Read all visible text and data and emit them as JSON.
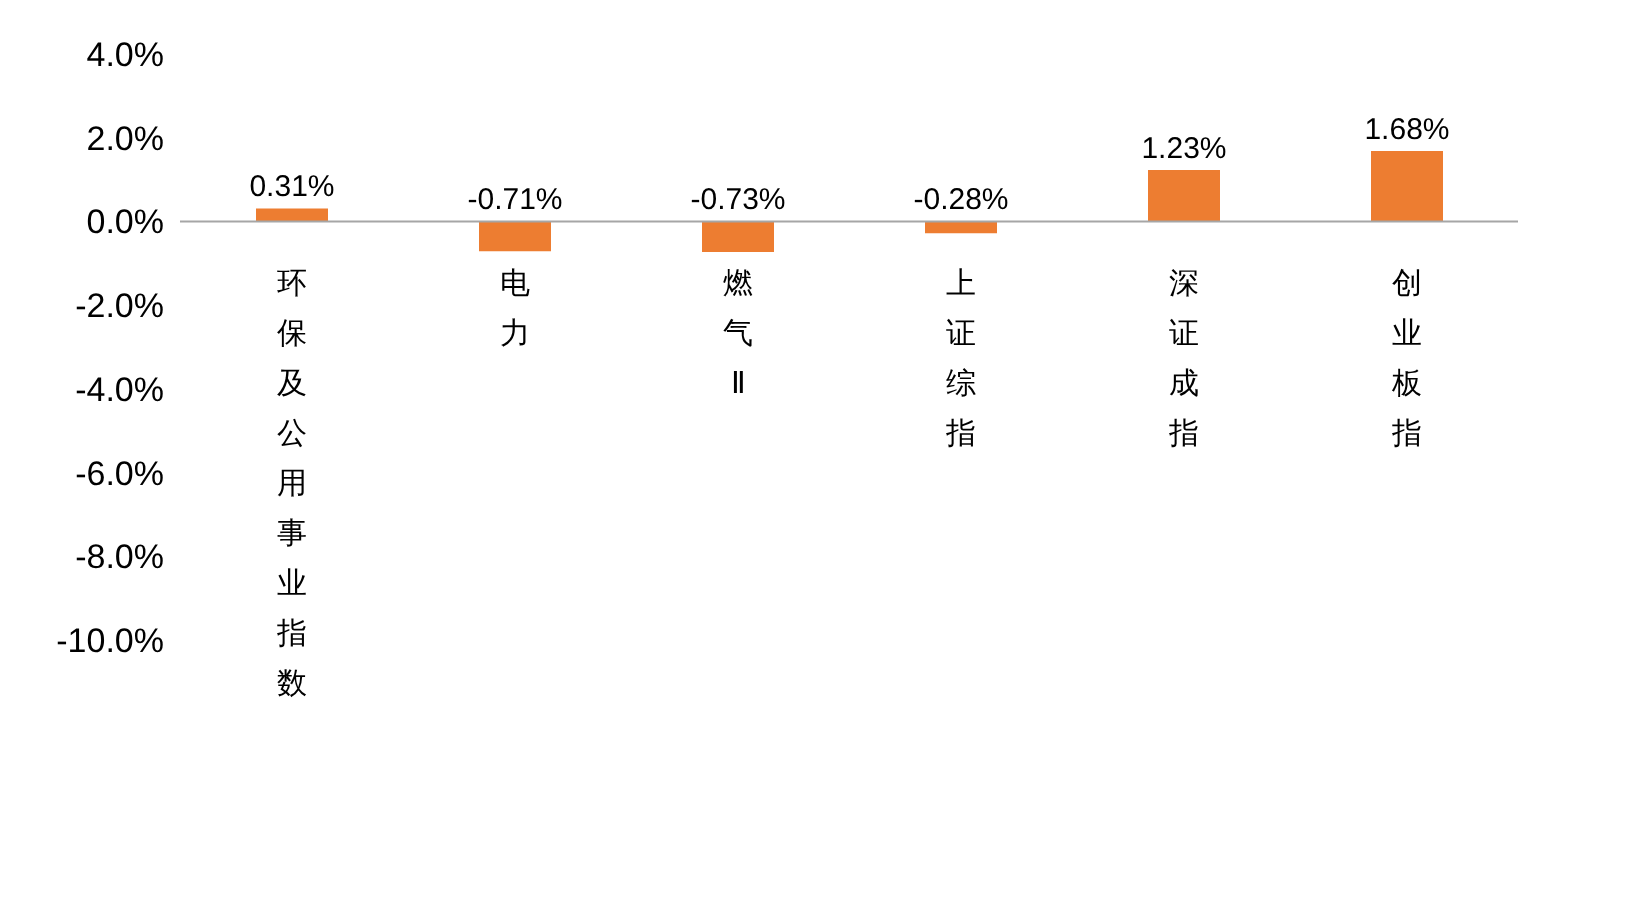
{
  "chart_data": {
    "type": "bar",
    "categories": [
      "环保及公用事业指数",
      "电力",
      "燃气Ⅱ",
      "上证综指",
      "深证成指",
      "创业板指"
    ],
    "values": [
      0.31,
      -0.71,
      -0.73,
      -0.28,
      1.23,
      1.68
    ],
    "value_labels": [
      "0.31%",
      "-0.71%",
      "-0.73%",
      "-0.28%",
      "1.23%",
      "1.68%"
    ],
    "color": "#ed7d31",
    "ylim": [
      -10,
      4
    ],
    "yticks": [
      {
        "value": 4,
        "label": "4.0%"
      },
      {
        "value": 2,
        "label": "2.0%"
      },
      {
        "value": 0,
        "label": "0.0%"
      },
      {
        "value": -2,
        "label": "-2.0%"
      },
      {
        "value": -4,
        "label": "-4.0%"
      },
      {
        "value": -6,
        "label": "-6.0%"
      },
      {
        "value": -8,
        "label": "-8.0%"
      },
      {
        "value": -10,
        "label": "-10.0%"
      }
    ],
    "grid": false,
    "legend": false
  }
}
